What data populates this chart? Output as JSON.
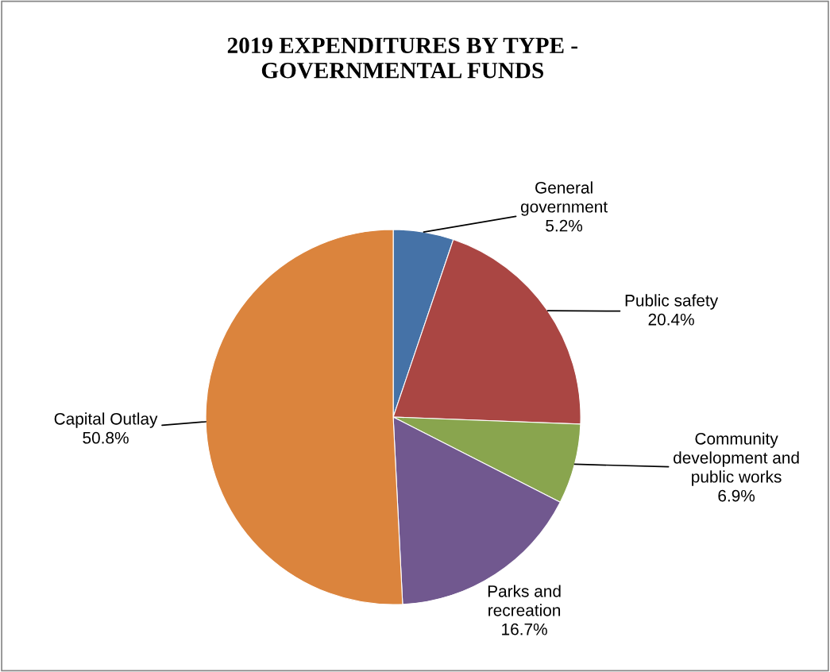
{
  "chart_data": {
    "type": "pie",
    "title": "2019 EXPENDITURES BY TYPE -\nGOVERNMENTAL FUNDS",
    "categories": [
      "General\ngovernment",
      "Public safety",
      "Community\ndevelopment and\npublic works",
      "Parks and\nrecreation",
      "Capital Outlay"
    ],
    "values": [
      5.2,
      20.4,
      6.9,
      16.7,
      50.8
    ],
    "colors": [
      "#4572a7",
      "#aa4643",
      "#89a54e",
      "#71588f",
      "#db843d"
    ],
    "value_labels": [
      "5.2%",
      "20.4%",
      "6.9%",
      "16.7%",
      "50.8%"
    ],
    "legend": false
  }
}
